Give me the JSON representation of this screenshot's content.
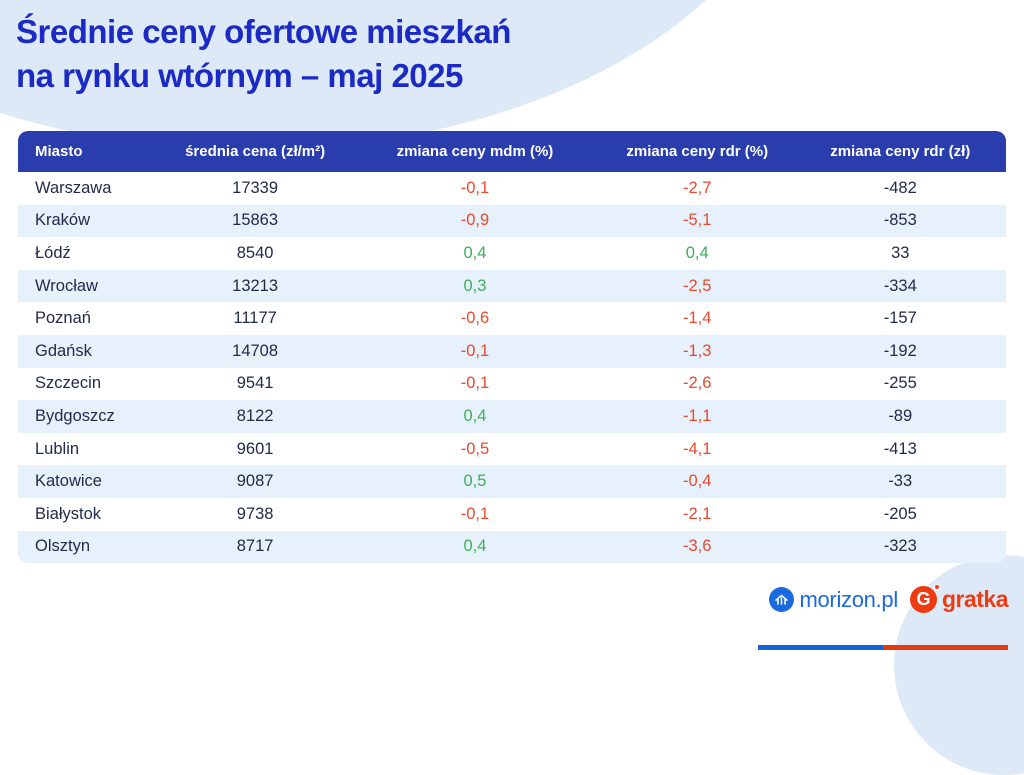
{
  "title": {
    "line1": "Średnie ceny ofertowe mieszkań",
    "line2": "na rynku wtórnym – maj 2025"
  },
  "table": {
    "columns": [
      "Miasto",
      "średnia cena (zł/m²)",
      "zmiana ceny mdm (%)",
      "zmiana ceny rdr (%)",
      "zmiana ceny rdr (zł)"
    ],
    "rows": [
      {
        "city": "Warszawa",
        "avg_price": "17339",
        "change_mom_pct": "-0,1",
        "change_yoy_pct": "-2,7",
        "change_yoy_zl": "-482"
      },
      {
        "city": "Kraków",
        "avg_price": "15863",
        "change_mom_pct": "-0,9",
        "change_yoy_pct": "-5,1",
        "change_yoy_zl": "-853"
      },
      {
        "city": "Łódź",
        "avg_price": "8540",
        "change_mom_pct": "0,4",
        "change_yoy_pct": "0,4",
        "change_yoy_zl": "33"
      },
      {
        "city": "Wrocław",
        "avg_price": "13213",
        "change_mom_pct": "0,3",
        "change_yoy_pct": "-2,5",
        "change_yoy_zl": "-334"
      },
      {
        "city": "Poznań",
        "avg_price": "11177",
        "change_mom_pct": "-0,6",
        "change_yoy_pct": "-1,4",
        "change_yoy_zl": "-157"
      },
      {
        "city": "Gdańsk",
        "avg_price": "14708",
        "change_mom_pct": "-0,1",
        "change_yoy_pct": "-1,3",
        "change_yoy_zl": "-192"
      },
      {
        "city": "Szczecin",
        "avg_price": "9541",
        "change_mom_pct": "-0,1",
        "change_yoy_pct": "-2,6",
        "change_yoy_zl": "-255"
      },
      {
        "city": "Bydgoszcz",
        "avg_price": "8122",
        "change_mom_pct": "0,4",
        "change_yoy_pct": "-1,1",
        "change_yoy_zl": "-89"
      },
      {
        "city": "Lublin",
        "avg_price": "9601",
        "change_mom_pct": "-0,5",
        "change_yoy_pct": "-4,1",
        "change_yoy_zl": "-413"
      },
      {
        "city": "Katowice",
        "avg_price": "9087",
        "change_mom_pct": "0,5",
        "change_yoy_pct": "-0,4",
        "change_yoy_zl": "-33"
      },
      {
        "city": "Białystok",
        "avg_price": "9738",
        "change_mom_pct": "-0,1",
        "change_yoy_pct": "-2,1",
        "change_yoy_zl": "-205"
      },
      {
        "city": "Olsztyn",
        "avg_price": "8717",
        "change_mom_pct": "0,4",
        "change_yoy_pct": "-3,6",
        "change_yoy_zl": "-323"
      }
    ]
  },
  "footer": {
    "brand_morizon": "morizon.pl",
    "brand_gratka": "gratka"
  },
  "colors": {
    "title_blue": "#1b2ac4",
    "header_bg": "#2a3dac",
    "row_stripe": "#e6f1fb",
    "text_dark": "#222b49",
    "negative": "#e8492e",
    "positive": "#3eae58",
    "morizon_blue": "#1a6ae2",
    "gratka_red": "#ee3b12",
    "bar_blue": "#1563da",
    "bar_red": "#e63a10",
    "blob_light_blue": "#dde9f6"
  }
}
